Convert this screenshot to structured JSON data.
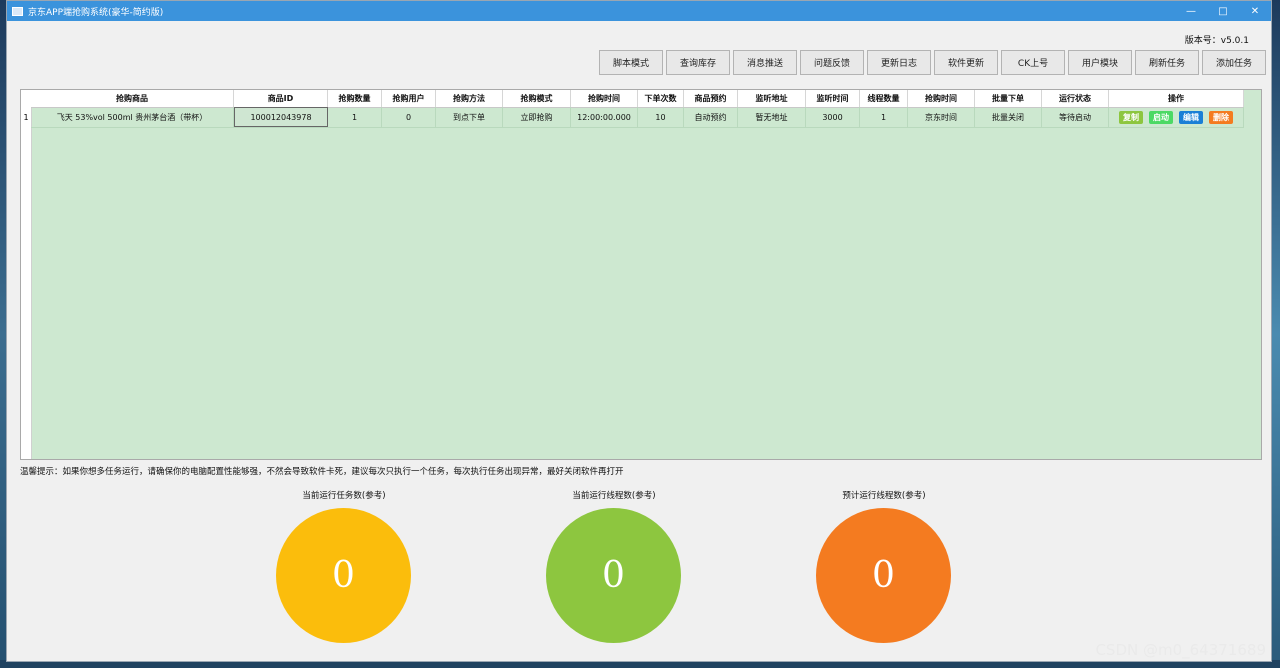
{
  "window": {
    "title": "京东APP端抢购系统(豪华-简约版)",
    "controls": [
      "—",
      "□",
      "✕"
    ]
  },
  "version": "版本号：v5.0.1",
  "toolbar": [
    "脚本模式",
    "查询库存",
    "消息推送",
    "问题反馈",
    "更新日志",
    "软件更新",
    "CK上号",
    "用户模块",
    "刷新任务",
    "添加任务"
  ],
  "table": {
    "columns": [
      "抢购商品",
      "商品ID",
      "抢购数量",
      "抢购用户",
      "抢购方法",
      "抢购模式",
      "抢购时间",
      "下单次数",
      "商品预约",
      "监听地址",
      "监听时间",
      "线程数量",
      "抢购时间",
      "批量下单",
      "运行状态",
      "操作"
    ],
    "rows": [
      {
        "num": "1",
        "cells": [
          "飞天 53%vol  500ml 贵州茅台酒（带杯）",
          "100012043978",
          "1",
          "0",
          "到点下单",
          "立即抢购",
          "12:00:00.000",
          "10",
          "自动预约",
          "暂无地址",
          "3000",
          "1",
          "京东时间",
          "批量关闭",
          "等待启动"
        ],
        "actions": [
          "复制",
          "启动",
          "编辑",
          "删除"
        ]
      }
    ]
  },
  "tip": "温馨提示：如果你想多任务运行，请确保你的电脑配置性能够强，不然会导致软件卡死，建议每次只执行一个任务，每次执行任务出现异常，最好关闭软件再打开",
  "stats": [
    {
      "label": "当前运行任务数(参考)",
      "value": "0",
      "color": "#fbbd0c"
    },
    {
      "label": "当前运行线程数(参考)",
      "value": "0",
      "color": "#8dc63f"
    },
    {
      "label": "预计运行线程数(参考)",
      "value": "0",
      "color": "#f47b20"
    }
  ],
  "action_colors": [
    "#8dc63f",
    "#4cd964",
    "#1a7fd6",
    "#f47b20"
  ],
  "watermark": "CSDN @m0_64371689"
}
